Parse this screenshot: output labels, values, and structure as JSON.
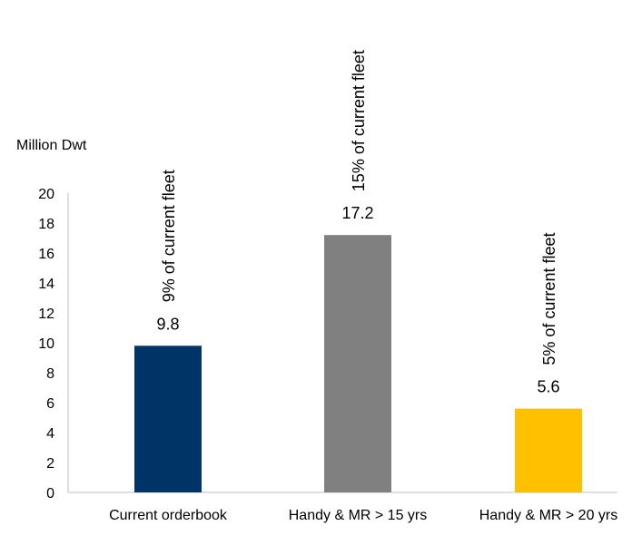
{
  "chart_data": {
    "type": "bar",
    "ylabel": "Million Dwt",
    "ylim": [
      0,
      20
    ],
    "yticks": [
      0,
      2,
      4,
      6,
      8,
      10,
      12,
      14,
      16,
      18,
      20
    ],
    "grid": false,
    "categories": [
      "Current orderbook",
      "Handy & MR > 15 yrs",
      "Handy & MR > 20 yrs"
    ],
    "values": [
      9.8,
      17.2,
      5.6
    ],
    "data_labels": [
      "9.8",
      "17.2",
      "5.6"
    ],
    "annotations": [
      "9% of current fleet",
      "15% of current fleet",
      "5% of current fleet"
    ],
    "colors": [
      "#003366",
      "#808080",
      "#FFC000"
    ]
  }
}
